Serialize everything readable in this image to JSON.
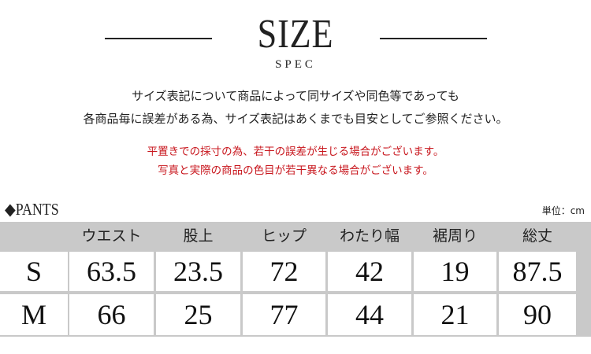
{
  "header": {
    "title": "SIZE",
    "subtitle": "SPEC"
  },
  "notes": [
    "サイズ表記について商品によって同サイズや同色等であっても",
    "各商品毎に誤差がある為、サイズ表記はあくまでも目安としてご参照ください。"
  ],
  "warnings": [
    "平置きでの採寸の為、若干の誤差が生じる場合がございます。",
    "写真と実際の商品の色目が若干異なる場合がございます。"
  ],
  "colors": {
    "warning": "#c8161d",
    "table_gray": "#c9c9c9"
  },
  "section": {
    "label": "◆PANTS",
    "unit": "単位：cm"
  },
  "table": {
    "columns": [
      "ウエスト",
      "股上",
      "ヒップ",
      "わたり幅",
      "裾周り",
      "総丈"
    ],
    "rows": [
      {
        "size": "S",
        "values": [
          "63.5",
          "23.5",
          "72",
          "42",
          "19",
          "87.5"
        ]
      },
      {
        "size": "M",
        "values": [
          "66",
          "25",
          "77",
          "44",
          "21",
          "90"
        ]
      }
    ]
  }
}
